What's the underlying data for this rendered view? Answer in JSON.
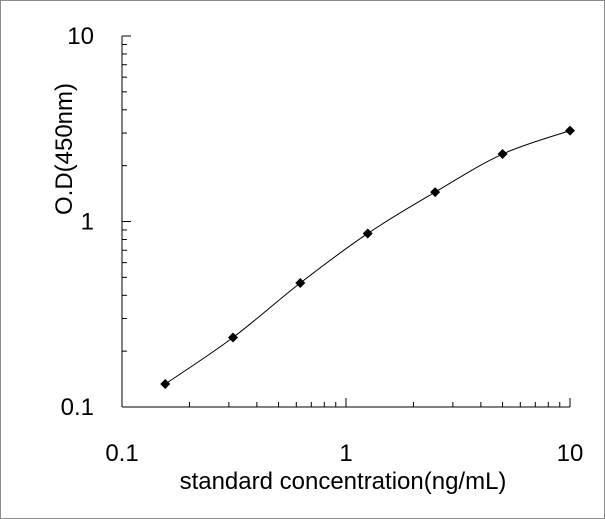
{
  "chart_data": {
    "type": "line",
    "title": "",
    "xlabel": "standard concentration(ng/mL)",
    "ylabel": "O.D(450nm)",
    "x_scale": "log",
    "y_scale": "log",
    "xlim": [
      0.1,
      10
    ],
    "ylim": [
      0.1,
      10
    ],
    "x_ticks": [
      {
        "value": 0.1,
        "label": "0.1"
      },
      {
        "value": 1,
        "label": "1"
      },
      {
        "value": 10,
        "label": "10"
      }
    ],
    "y_ticks": [
      {
        "value": 10,
        "label": "10"
      },
      {
        "value": 1,
        "label": "1"
      },
      {
        "value": 0.1,
        "label": "0.1"
      }
    ],
    "grid": false,
    "legend": "none",
    "series": [
      {
        "x": [
          0.156,
          0.313,
          0.625,
          1.25,
          2.5,
          5,
          10
        ],
        "y": [
          0.133,
          0.237,
          0.466,
          0.862,
          1.44,
          2.31,
          3.09
        ],
        "color": "#000000",
        "marker": "diamond"
      }
    ]
  }
}
